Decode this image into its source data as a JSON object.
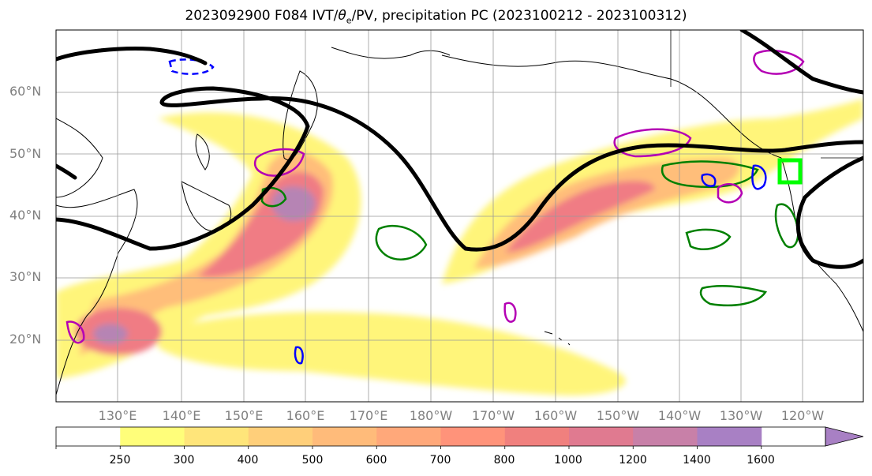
{
  "title_main": "2023092900 F084 IVT/",
  "title_theta": "θ",
  "title_sub": "e",
  "title_rest": "/PV, precipitation PC (2023100212 - 2023100312)",
  "lat_labels": [
    "60°N",
    "50°N",
    "40°N",
    "30°N",
    "20°N"
  ],
  "lon_labels": [
    "130°E",
    "140°E",
    "150°E",
    "160°E",
    "170°E",
    "180°W",
    "170°W",
    "160°W",
    "150°W",
    "140°W",
    "130°W",
    "120°W"
  ],
  "colorbar": {
    "levels": [
      250,
      300,
      400,
      500,
      600,
      700,
      800,
      1000,
      1200,
      1400,
      1600
    ],
    "labels": [
      "250",
      "300",
      "400",
      "500",
      "600",
      "700",
      "800",
      "1000",
      "1200",
      "1400",
      "1600"
    ],
    "colors": [
      "#fffe7a",
      "#ffe57a",
      "#ffcf7a",
      "#ffbb7a",
      "#ffa87a",
      "#ff937a",
      "#f0807e",
      "#e07a90",
      "#c880a8",
      "#a880c4"
    ]
  },
  "colors": {
    "ivt_low": "#fff57a",
    "ivt_mid": "#ffb07a",
    "ivt_high": "#f07c84",
    "ivt_peak": "#b684b4",
    "pv_contour": "#000000",
    "precip_green": "#008000",
    "precip_blue": "#0000ff",
    "precip_magenta": "#b400b4",
    "highlight_box": "#00ff00"
  }
}
